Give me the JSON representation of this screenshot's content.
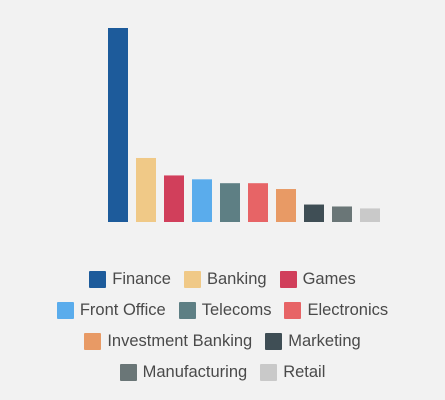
{
  "chart_data": {
    "type": "bar",
    "categories": [
      "Finance",
      "Banking",
      "Games",
      "Front Office",
      "Telecoms",
      "Electronics",
      "Investment Banking",
      "Marketing",
      "Manufacturing",
      "Retail"
    ],
    "values": [
      100,
      33,
      24,
      22,
      20,
      20,
      17,
      9,
      8,
      7
    ],
    "colors": [
      "#1d5b9b",
      "#f0c987",
      "#d13f5b",
      "#5aacec",
      "#5e7f84",
      "#e76466",
      "#e89a65",
      "#3f4e55",
      "#6a7677",
      "#c9c9c9"
    ],
    "ylim": [
      0,
      100
    ],
    "grid": false,
    "legend_position": "bottom"
  }
}
